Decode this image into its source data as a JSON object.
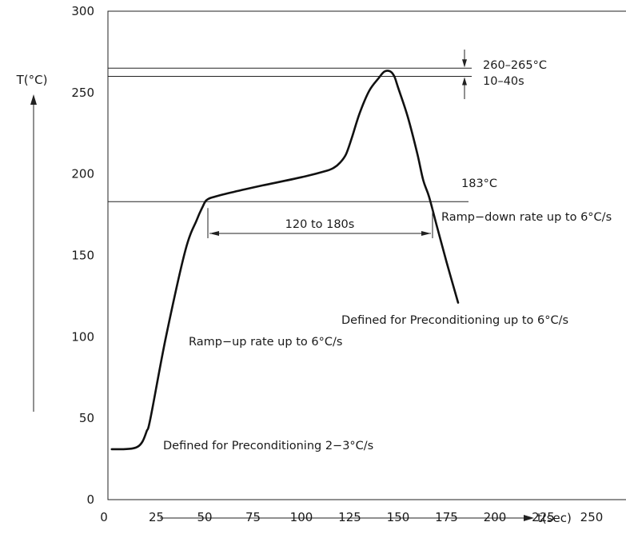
{
  "chart_data": {
    "type": "line",
    "title": "",
    "xlabel": "t(sec)",
    "ylabel": "T(°C)",
    "xlim": [
      0,
      270
    ],
    "ylim": [
      0,
      300
    ],
    "x_ticks": [
      "0",
      "25",
      "50",
      "75",
      "100",
      "125",
      "150",
      "175",
      "200",
      "225",
      "250"
    ],
    "y_ticks": [
      "0",
      "50",
      "100",
      "150",
      "200",
      "250",
      "300"
    ],
    "grid": false,
    "series": [
      {
        "name": "",
        "x": [
          2,
          8,
          13,
          16,
          18,
          20,
          22,
          30,
          40,
          46,
          49,
          51,
          55,
          65,
          80,
          100,
          113,
          117,
          120,
          123,
          126,
          130,
          135,
          140,
          143,
          146,
          148,
          150,
          155,
          160,
          163,
          166,
          170,
          175,
          181
        ],
        "y": [
          31,
          31,
          31.5,
          33,
          36,
          42,
          50,
          100,
          153,
          172,
          180,
          184,
          186,
          189,
          193,
          198,
          202,
          204,
          207,
          212,
          222,
          237,
          251,
          259,
          263,
          263,
          260,
          253,
          235,
          212,
          196,
          186,
          168,
          146,
          121
        ]
      }
    ],
    "reference_lines": {
      "liquidus": {
        "y": 183,
        "label": "183°C"
      },
      "peak_high": {
        "y": 265
      },
      "peak_low": {
        "y": 260
      }
    },
    "annotations": {
      "peak_temp": "260–265°C",
      "peak_time": "10–40s",
      "time_above_liquidus": "120 to 180s",
      "ramp_down": "Ramp−down rate up to 6°C/s",
      "defined_precond_6": "Defined for Preconditioning up to 6°C/s",
      "ramp_up": "Ramp−up rate up to 6°C/s",
      "defined_precond_23": "Defined for Preconditioning 2−3°C/s"
    }
  }
}
